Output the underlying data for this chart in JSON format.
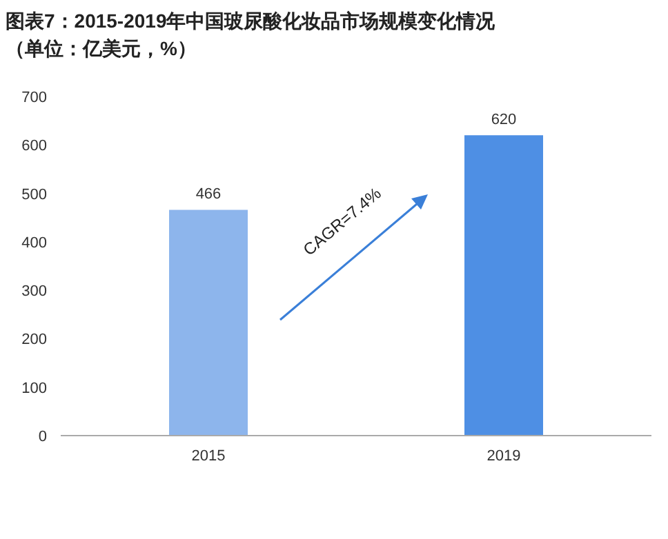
{
  "chart_data": {
    "type": "bar",
    "title": "图表7：2015-2019年中国玻尿酸化妆品市场规模变化情况",
    "subtitle": "（单位：亿美元，%）",
    "categories": [
      "2015",
      "2019"
    ],
    "values": [
      466,
      620
    ],
    "colors": [
      "#8db5ec",
      "#4e8fe4"
    ],
    "ylim": [
      0,
      700
    ],
    "yticks": [
      0,
      100,
      200,
      300,
      400,
      500,
      600,
      700
    ],
    "data_labels": true,
    "grid": false,
    "annotations": [
      "CAGR=7.4%"
    ]
  }
}
